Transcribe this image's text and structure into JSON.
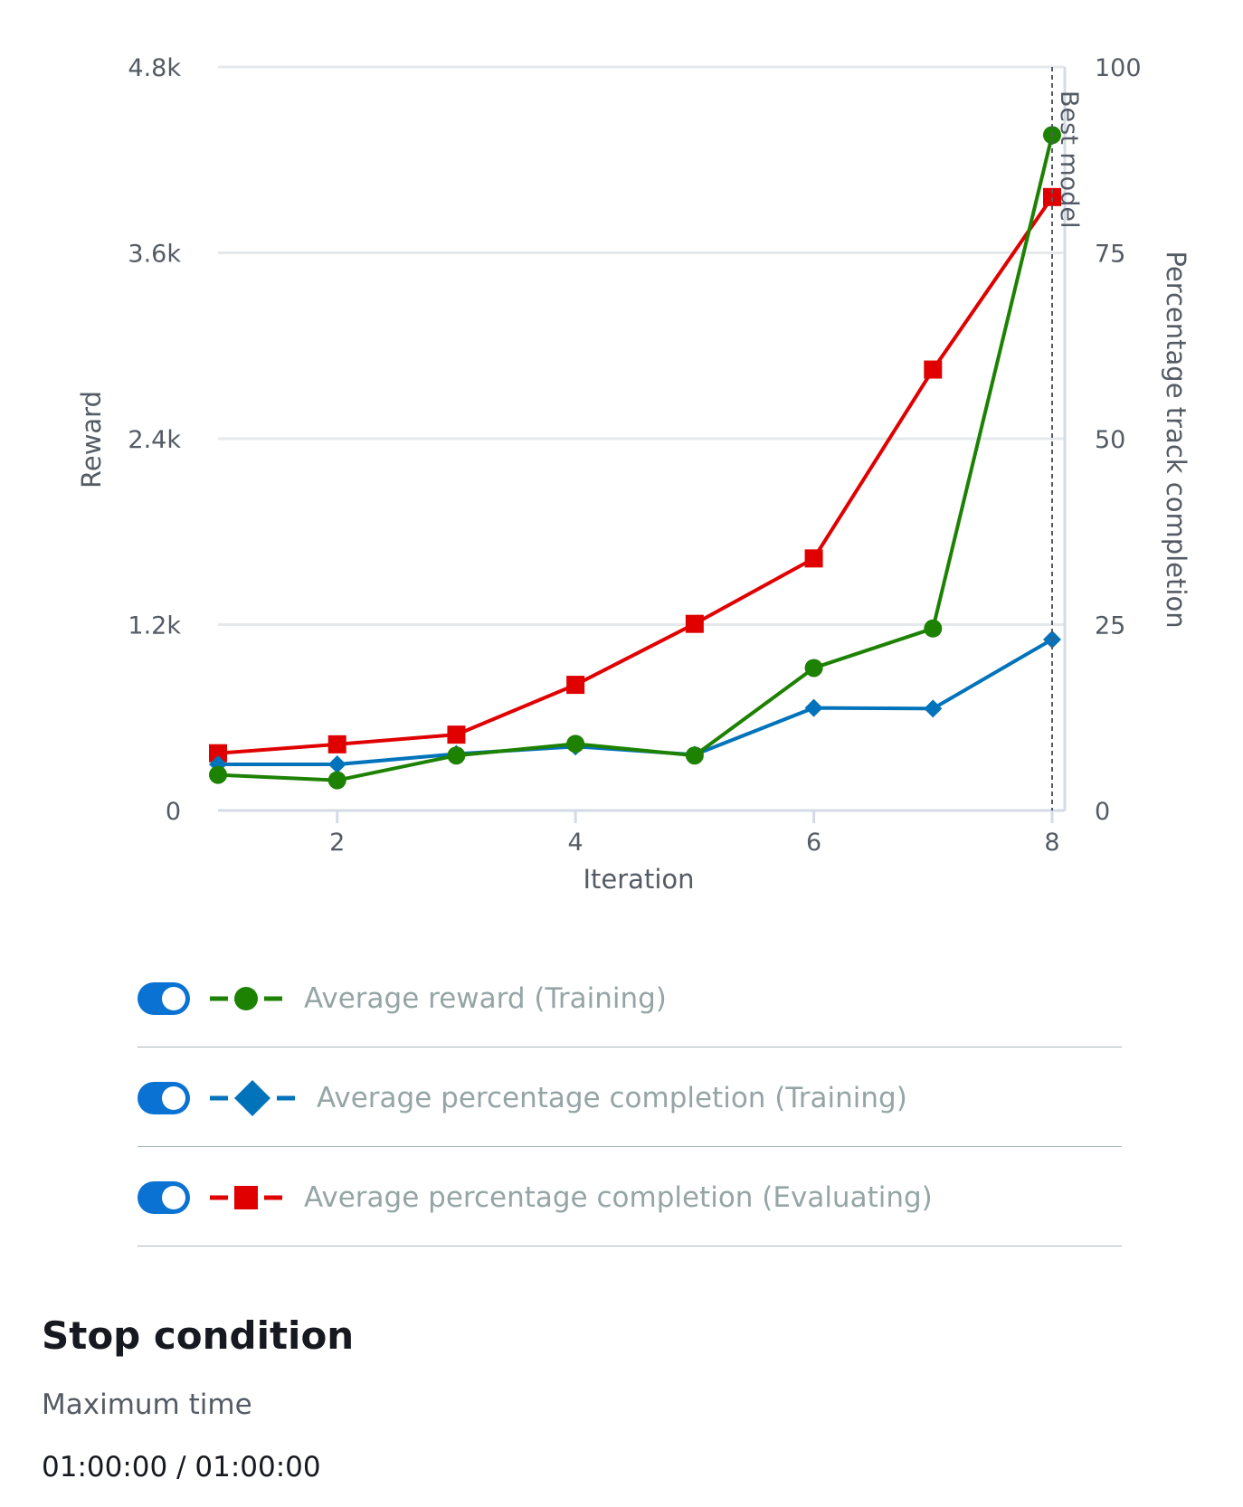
{
  "chart_data": {
    "type": "line",
    "xlabel": "Iteration",
    "ylabel": "Reward",
    "y2label": "Percentage track completion",
    "xlim": [
      1,
      8
    ],
    "ylim": [
      0,
      4800
    ],
    "y2lim": [
      0,
      100
    ],
    "x_ticks": [
      2,
      4,
      6,
      8
    ],
    "x_tick_labels": [
      "2",
      "4",
      "6",
      "8"
    ],
    "y_ticks": [
      0,
      1200,
      2400,
      3600,
      4800
    ],
    "y_tick_labels": [
      "0",
      "1.2k",
      "2.4k",
      "3.6k",
      "4.8k"
    ],
    "y2_ticks": [
      0,
      25,
      50,
      75,
      100
    ],
    "y2_tick_labels": [
      "0",
      "25",
      "50",
      "75",
      "100"
    ],
    "grid": true,
    "annotations": [
      {
        "text": "Best model",
        "x": 8,
        "style": "dashed vertical line"
      }
    ],
    "x": [
      1,
      2,
      3,
      4,
      5,
      6,
      7,
      8
    ],
    "series": [
      {
        "name": "Average reward (Training)",
        "axis": "left",
        "color": "#1d8102",
        "marker": "circle",
        "values": [
          230,
          195,
          355,
          430,
          355,
          920,
          1175,
          4360
        ]
      },
      {
        "name": "Average percentage completion (Training)",
        "axis": "right",
        "color": "#0073bb",
        "marker": "diamond",
        "values": [
          6.2,
          6.2,
          7.6,
          8.6,
          7.5,
          13.8,
          13.7,
          23.0
        ]
      },
      {
        "name": "Average percentage completion (Evaluating)",
        "axis": "right",
        "color": "#e00000",
        "marker": "square",
        "values": [
          7.7,
          8.9,
          10.2,
          16.9,
          25.1,
          33.9,
          59.3,
          82.5
        ]
      }
    ]
  },
  "legend": {
    "items": [
      {
        "label": "Average reward (Training)",
        "color": "#1d8102",
        "marker": "circle-icon",
        "enabled": true
      },
      {
        "label": "Average percentage completion (Training)",
        "color": "#0073bb",
        "marker": "diamond-icon",
        "enabled": true
      },
      {
        "label": "Average percentage completion (Evaluating)",
        "color": "#e00000",
        "marker": "square-icon",
        "enabled": true
      }
    ]
  },
  "stop_condition": {
    "title": "Stop condition",
    "label": "Maximum time",
    "value": "01:00:00 / 01:00:00"
  }
}
